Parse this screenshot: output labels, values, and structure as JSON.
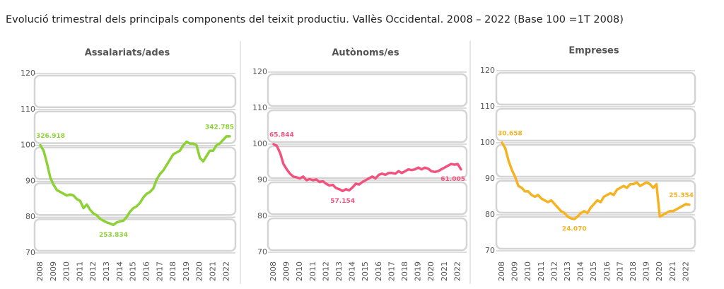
{
  "title": "Evolució trimestral dels principals components del teixit productiu. Vallès Occidental. 2008 – 2022 (Base 100 =1T 2008)",
  "chart_data": [
    {
      "type": "line",
      "title": "Assalariats/ades",
      "categories": [
        "2008",
        null,
        null,
        null,
        "2009",
        null,
        null,
        null,
        "2010",
        null,
        null,
        null,
        "2011",
        null,
        null,
        null,
        "2012",
        null,
        null,
        null,
        "2013",
        null,
        null,
        null,
        "2014",
        null,
        null,
        null,
        "2015",
        null,
        null,
        null,
        "2016",
        null,
        null,
        null,
        "2017",
        null,
        null,
        null,
        "2018",
        null,
        null,
        null,
        "2019",
        null,
        null,
        null,
        "2020",
        null,
        null,
        null,
        "2021",
        null,
        null,
        null,
        "2022",
        null
      ],
      "series": [
        {
          "color": "#8cd136",
          "values": [
            100,
            98.5,
            95,
            91,
            89,
            87.5,
            87,
            86.5,
            86,
            86.3,
            86,
            85,
            84.5,
            82.5,
            83.5,
            82,
            81,
            80.5,
            79.5,
            79,
            78.5,
            78.2,
            77.8,
            78.5,
            78.8,
            79,
            80,
            81.5,
            82.5,
            83,
            84,
            85.5,
            86.5,
            87,
            88,
            90.5,
            92,
            93,
            94.5,
            96,
            97.5,
            98,
            98.5,
            100,
            101,
            100.5,
            100.5,
            100,
            96.5,
            95.5,
            97,
            98.5,
            98.5,
            100,
            100.5,
            101.5,
            102.5,
            102.5
          ]
        }
      ],
      "ylim": [
        70,
        120
      ],
      "yticks": [
        70,
        80,
        90,
        100,
        110,
        120
      ],
      "annotations": [
        "326.918",
        "253.834",
        "342.785"
      ]
    },
    {
      "type": "line",
      "title": "Autònoms/es",
      "categories": [
        "2008",
        null,
        null,
        null,
        "2009",
        null,
        null,
        null,
        "2010",
        null,
        null,
        null,
        "2011",
        null,
        null,
        null,
        "2012",
        null,
        null,
        null,
        "2013",
        null,
        null,
        null,
        "2014",
        null,
        null,
        null,
        "2015",
        null,
        null,
        null,
        "2016",
        null,
        null,
        null,
        "2017",
        null,
        null,
        null,
        "2018",
        null,
        null,
        null,
        "2019",
        null,
        null,
        null,
        "2020",
        null,
        null,
        null,
        "2021",
        null,
        null,
        null,
        "2022",
        null
      ],
      "series": [
        {
          "color": "#f2527e",
          "values": [
            100,
            99.5,
            97.5,
            94.5,
            93,
            91.8,
            91,
            90.8,
            90.5,
            91,
            90,
            90.3,
            90,
            90.2,
            89.5,
            89.7,
            89,
            88.5,
            88.7,
            87.8,
            87.5,
            87,
            87.5,
            87.2,
            88,
            89,
            88.8,
            89.5,
            90,
            90.5,
            91,
            90.5,
            91.5,
            91.8,
            91.5,
            92,
            92,
            91.8,
            92.5,
            92,
            92.5,
            93,
            92.8,
            93,
            93.5,
            93,
            93.5,
            93.2,
            92.5,
            92.3,
            92.5,
            93,
            93.5,
            94,
            94.5,
            94.3,
            94.5,
            93
          ]
        }
      ],
      "ylim": [
        70,
        120
      ],
      "yticks": [
        70,
        80,
        90,
        100,
        110,
        120
      ],
      "annotations": [
        "65.844",
        "57.154",
        "61.005"
      ]
    },
    {
      "type": "line",
      "title": "Empreses",
      "categories": [
        "2008",
        null,
        null,
        null,
        "2009",
        null,
        null,
        null,
        "2010",
        null,
        null,
        null,
        "2011",
        null,
        null,
        null,
        "2012",
        null,
        null,
        null,
        "2013",
        null,
        null,
        null,
        "2014",
        null,
        null,
        null,
        "2015",
        null,
        null,
        null,
        "2016",
        null,
        null,
        null,
        "2017",
        null,
        null,
        null,
        "2018",
        null,
        null,
        null,
        "2019",
        null,
        null,
        null,
        "2020",
        null,
        null,
        null,
        "2021",
        null,
        null,
        null,
        "2022",
        null
      ],
      "series": [
        {
          "color": "#f5b324",
          "values": [
            100,
            98.5,
            95,
            92.5,
            90.5,
            88,
            87.5,
            86.5,
            86.5,
            85.5,
            85,
            85.5,
            84.5,
            84,
            83.5,
            84,
            83,
            82,
            81,
            80.5,
            79.5,
            79,
            78.8,
            79.5,
            80.5,
            81,
            80.5,
            82,
            83,
            84,
            83.5,
            85,
            85.5,
            86,
            85.5,
            87,
            87.5,
            88,
            87.5,
            88.5,
            88.5,
            89,
            88,
            88.5,
            89,
            88.5,
            87.5,
            88.5,
            79.5,
            80,
            80.5,
            81,
            81,
            81.5,
            82,
            82.5,
            83,
            82.8
          ]
        }
      ],
      "ylim": [
        70,
        120
      ],
      "yticks": [
        70,
        80,
        90,
        100,
        110,
        120
      ],
      "annotations": [
        "30.658",
        "24.070",
        "25.354"
      ]
    }
  ]
}
